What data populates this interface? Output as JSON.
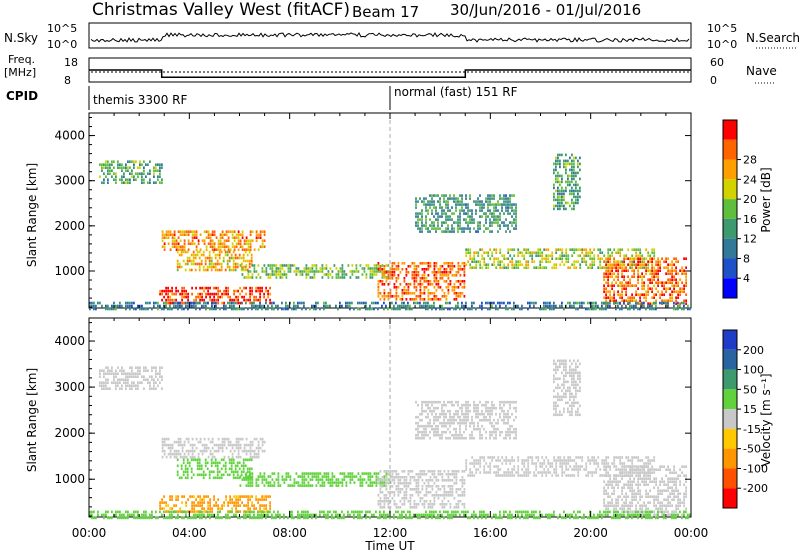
{
  "title": {
    "station": "Christmas Valley West (fitACF)",
    "beam": "Beam 17",
    "dates": "30/Jun/2016 - 01/Jul/2016"
  },
  "top_panels": {
    "nsky_label": "N.Sky",
    "nsearch_label": "N.Search",
    "nsky_ticks": [
      "10^5",
      "10^0"
    ],
    "nsearch_ticks": [
      "10^5",
      "10^0"
    ],
    "freq_label_line1": "Freq.",
    "freq_label_line2": "[MHz]",
    "freq_ticks": [
      "18",
      "8"
    ],
    "nave_label": "Nave",
    "nave_ticks": [
      "60",
      "0"
    ],
    "cpid_label": "CPID",
    "cpid_segments": [
      "themis 3300 RF",
      "normal (fast) 151 RF"
    ]
  },
  "chart_data": [
    {
      "type": "heatmap",
      "name": "power",
      "ylabel": "Slant Range [km]",
      "xlabel": "Time UT",
      "x_ticks": [
        "00:00",
        "04:00",
        "08:00",
        "12:00",
        "16:00",
        "20:00",
        "00:00"
      ],
      "y_ticks": [
        1000,
        2000,
        3000,
        4000
      ],
      "ylim": [
        180,
        4500
      ],
      "xlim_hours": [
        0,
        24
      ],
      "colorbar": {
        "label": "Power [dB]",
        "ticks": [
          "4",
          "8",
          "12",
          "16",
          "20",
          "24",
          "28"
        ],
        "colors": [
          "#0000ff",
          "#1e50c8",
          "#32789b",
          "#3c9a6e",
          "#5fbe3c",
          "#d2d200",
          "#ffa000",
          "#ff6400",
          "#ff0000"
        ]
      },
      "blobs": [
        {
          "t0": 0.4,
          "t1": 2.9,
          "r0": 2950,
          "r1": 3450,
          "power": 12
        },
        {
          "t0": 2.9,
          "t1": 7.0,
          "r0": 1450,
          "r1": 1900,
          "power": 22
        },
        {
          "t0": 3.5,
          "t1": 6.5,
          "r0": 1050,
          "r1": 1450,
          "power": 20
        },
        {
          "t0": 6.0,
          "t1": 12.0,
          "r0": 850,
          "r1": 1150,
          "power": 14
        },
        {
          "t0": 2.8,
          "t1": 7.2,
          "r0": 300,
          "r1": 650,
          "power": 26
        },
        {
          "t0": 11.5,
          "t1": 15.0,
          "r0": 400,
          "r1": 1200,
          "power": 24
        },
        {
          "t0": 13.0,
          "t1": 17.0,
          "r0": 1900,
          "r1": 2700,
          "power": 10
        },
        {
          "t0": 15.0,
          "t1": 22.5,
          "r0": 1100,
          "r1": 1500,
          "power": 16
        },
        {
          "t0": 20.5,
          "t1": 23.8,
          "r0": 250,
          "r1": 1300,
          "power": 24
        },
        {
          "t0": 18.5,
          "t1": 19.6,
          "r0": 2400,
          "r1": 3600,
          "power": 12
        },
        {
          "t0": 0.0,
          "t1": 24.0,
          "r0": 180,
          "r1": 320,
          "power": 8
        }
      ]
    },
    {
      "type": "heatmap",
      "name": "velocity",
      "ylabel": "Slant Range [km]",
      "xlabel": "Time UT",
      "x_ticks": [
        "00:00",
        "04:00",
        "08:00",
        "12:00",
        "16:00",
        "20:00",
        "00:00"
      ],
      "y_ticks": [
        1000,
        2000,
        3000,
        4000
      ],
      "ylim": [
        180,
        4500
      ],
      "xlim_hours": [
        0,
        24
      ],
      "colorbar": {
        "label": "Velocity [m s⁻¹]",
        "ticks": [
          "200",
          "100",
          "50",
          "15",
          "-15",
          "-50",
          "-100",
          "-200"
        ],
        "colors": [
          "#1e3cc8",
          "#2864a0",
          "#3c9a6e",
          "#5fd23c",
          "#c8c8c8",
          "#ffc800",
          "#ff9600",
          "#ff5000",
          "#ff0000"
        ]
      },
      "blobs": [
        {
          "t0": 0.4,
          "t1": 2.9,
          "r0": 2950,
          "r1": 3450,
          "velocity": 0
        },
        {
          "t0": 2.9,
          "t1": 7.0,
          "r0": 1450,
          "r1": 1900,
          "velocity": 0
        },
        {
          "t0": 3.5,
          "t1": 6.5,
          "r0": 1050,
          "r1": 1450,
          "velocity": 30
        },
        {
          "t0": 6.0,
          "t1": 12.0,
          "r0": 850,
          "r1": 1150,
          "velocity": 30
        },
        {
          "t0": 2.8,
          "t1": 7.2,
          "r0": 300,
          "r1": 650,
          "velocity": -60
        },
        {
          "t0": 11.5,
          "t1": 15.0,
          "r0": 400,
          "r1": 1200,
          "velocity": 0
        },
        {
          "t0": 13.0,
          "t1": 17.0,
          "r0": 1900,
          "r1": 2700,
          "velocity": 0
        },
        {
          "t0": 15.0,
          "t1": 22.5,
          "r0": 1100,
          "r1": 1500,
          "velocity": 0
        },
        {
          "t0": 20.5,
          "t1": 23.8,
          "r0": 250,
          "r1": 1300,
          "velocity": 0
        },
        {
          "t0": 18.5,
          "t1": 19.6,
          "r0": 2400,
          "r1": 3600,
          "velocity": 0
        },
        {
          "t0": 0.0,
          "t1": 24.0,
          "r0": 180,
          "r1": 320,
          "velocity": 30
        }
      ]
    }
  ],
  "freq_series": {
    "segments": [
      {
        "t0": 0.0,
        "t1": 2.9,
        "value": 13
      },
      {
        "t0": 2.9,
        "t1": 15.0,
        "value": 10
      },
      {
        "t0": 15.0,
        "t1": 24.0,
        "value": 13
      }
    ],
    "ylim": [
      8,
      18
    ]
  }
}
